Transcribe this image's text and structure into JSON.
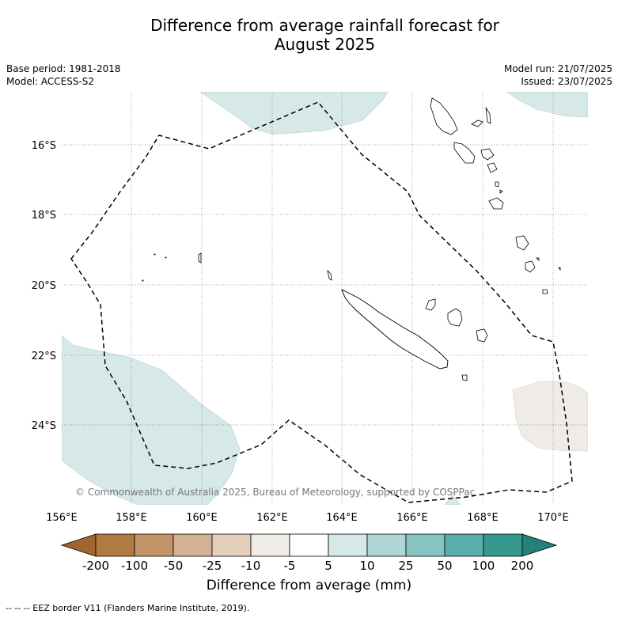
{
  "title_line1": "Difference from average rainfall forecast for",
  "title_line2": "August 2025",
  "base_period": "Base period: 1981-2018",
  "model": "Model: ACCESS-S2",
  "model_run": "Model run: 21/07/2025",
  "issued": "Issued: 23/07/2025",
  "copyright": "© Commonwealth of Australia 2025, Bureau of Meteorology, supported by COSPPac",
  "lat_labels": [
    "16°S",
    "18°S",
    "20°S",
    "22°S",
    "24°S"
  ],
  "lon_labels": [
    "156°E",
    "158°E",
    "160°E",
    "162°E",
    "164°E",
    "166°E",
    "168°E",
    "170°E"
  ],
  "colorbar": {
    "ticks": [
      "-200",
      "-100",
      "-50",
      "-25",
      "-10",
      "-5",
      "5",
      "10",
      "25",
      "50",
      "100",
      "200"
    ],
    "colors": [
      "#a16630",
      "#b17a41",
      "#c29467",
      "#d3b192",
      "#e4cfba",
      "#efece8",
      "#ffffff",
      "#d6e8e7",
      "#aed6d5",
      "#87c3c1",
      "#5aaeab",
      "#35998f",
      "#25807a"
    ],
    "title": "Difference from average (mm)"
  },
  "map_colors": {
    "wet_light": "#d6e8e7",
    "dry_light": "#efece8"
  },
  "footnote": "-- -- -- EEZ border V11 (Flanders Marine Institute, 2019)."
}
